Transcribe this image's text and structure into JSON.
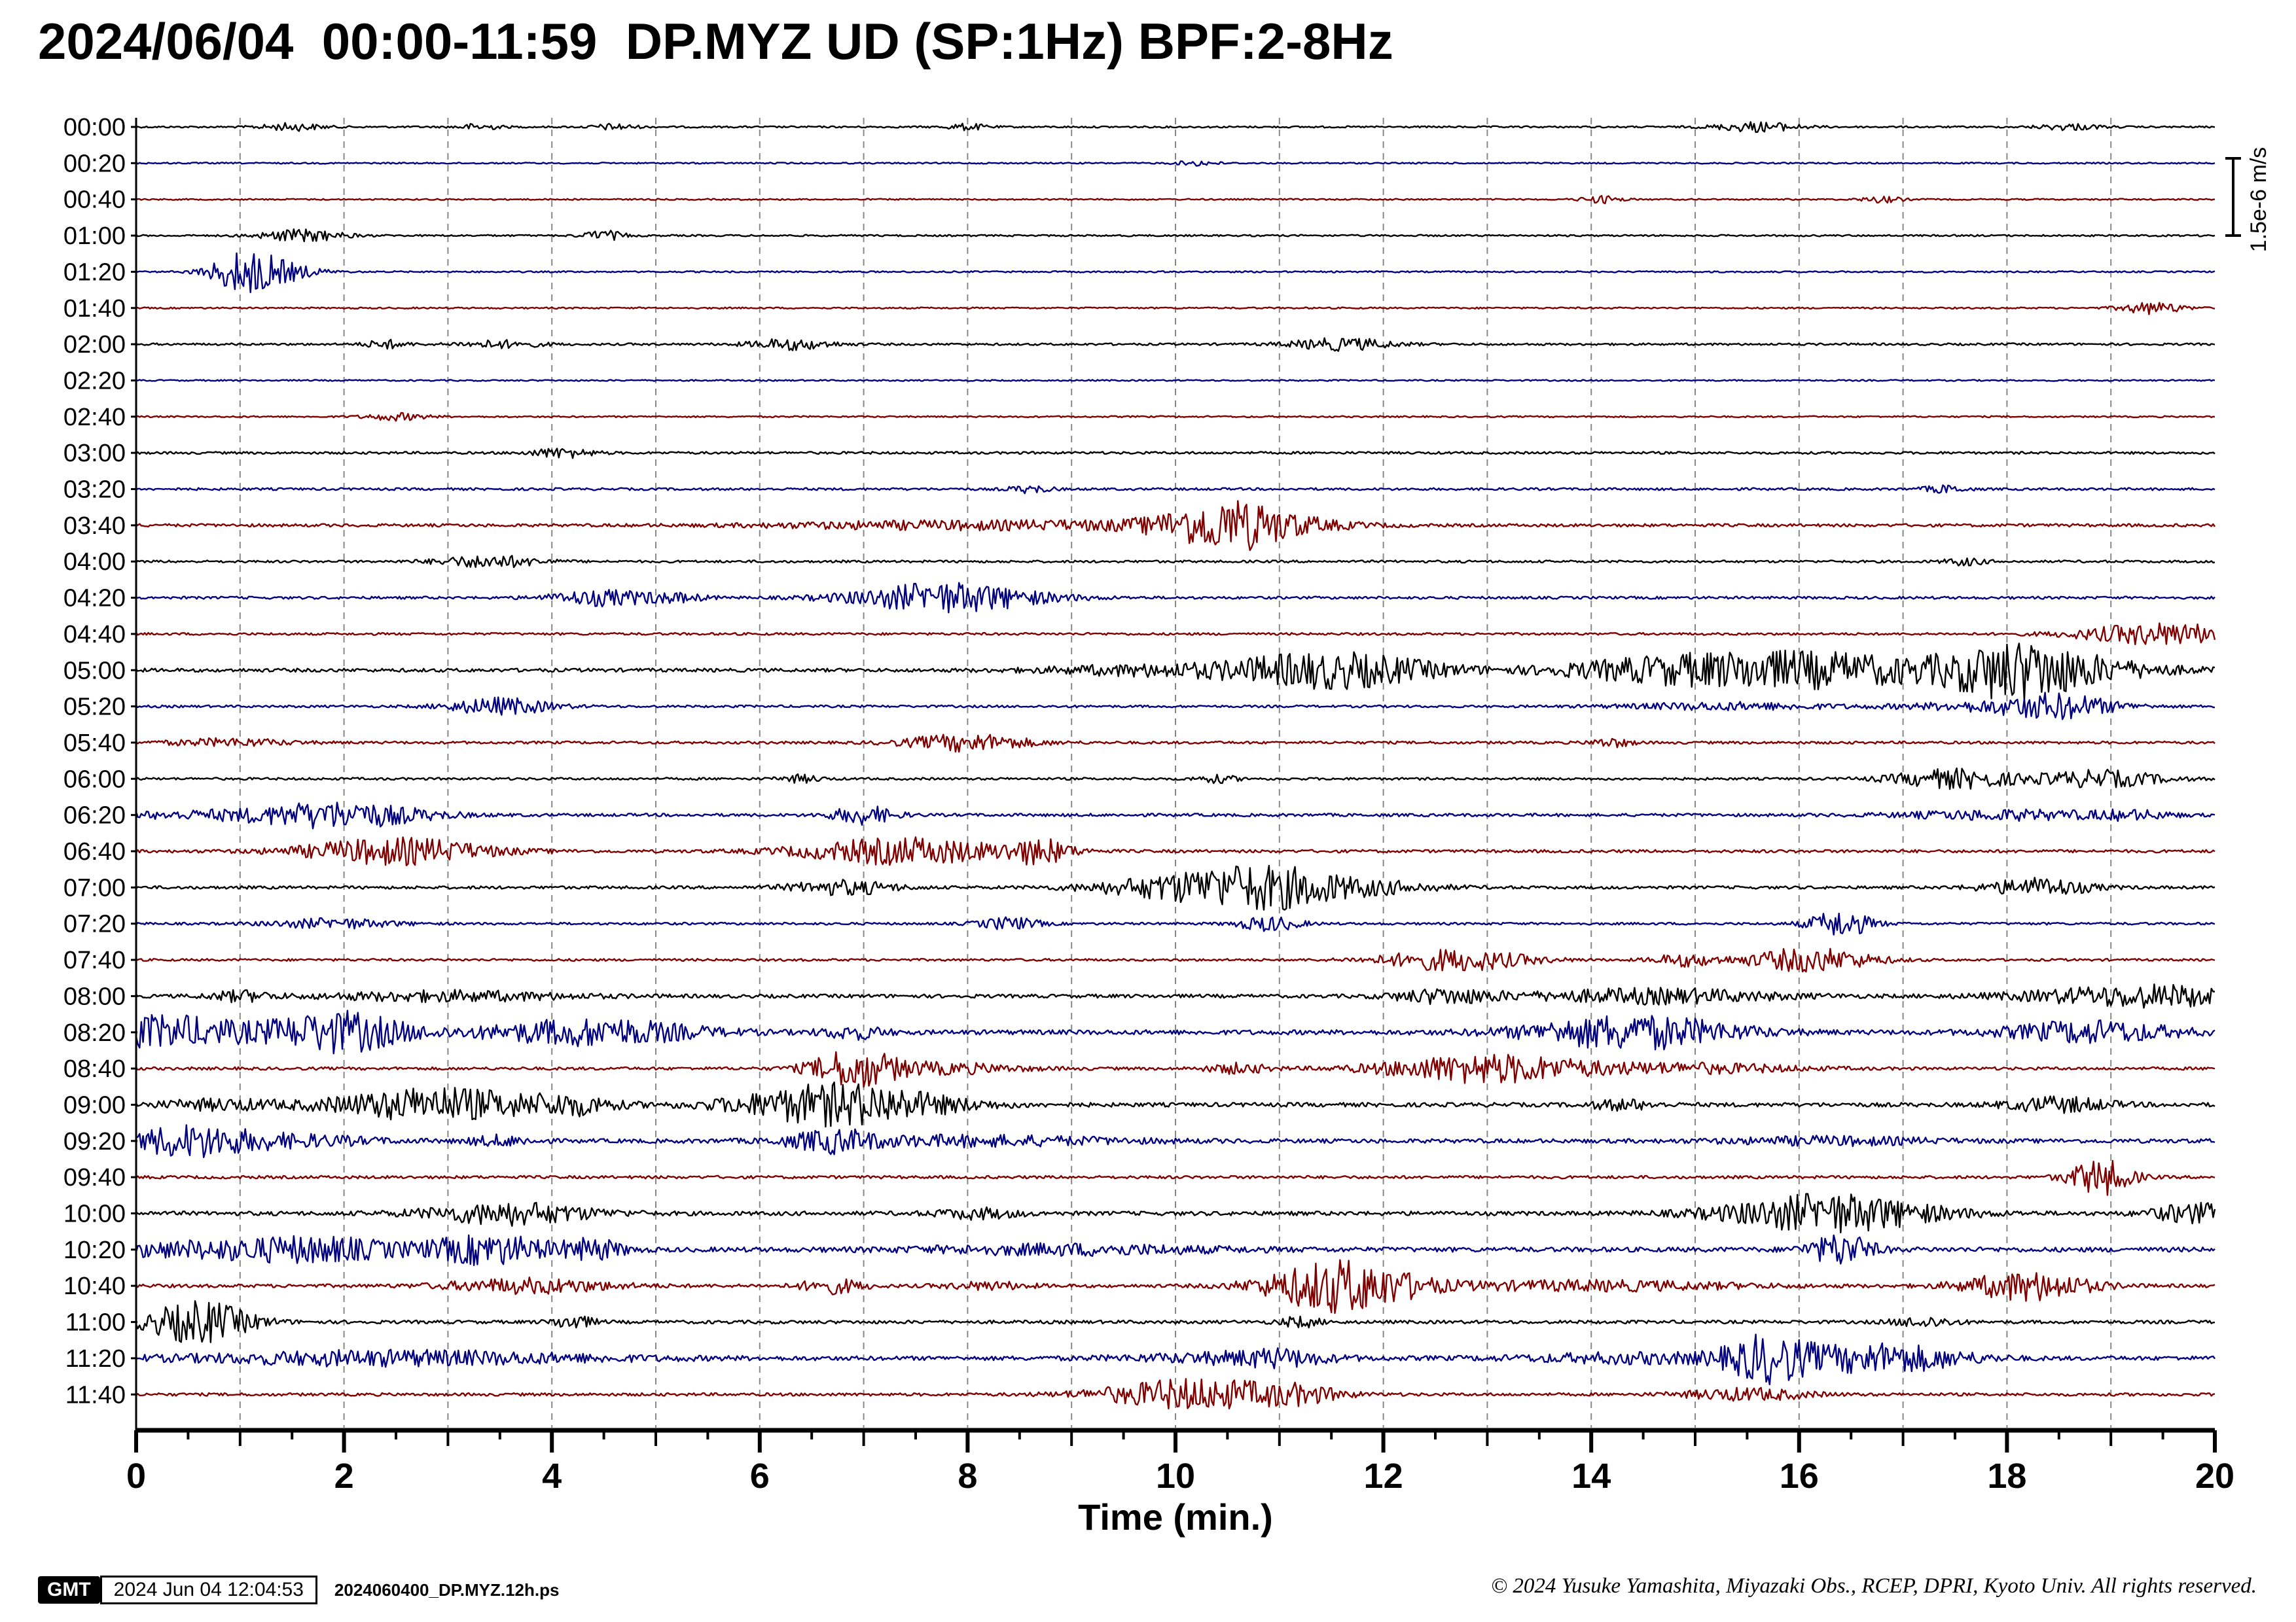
{
  "title": "2024/06/04  00:00-11:59  DP.MYZ UD (SP:1Hz) BPF:2-8Hz",
  "colors": {
    "black": "#000000",
    "blue": "#000080",
    "red": "#800000"
  },
  "footer": {
    "logo": "GMT",
    "timestamp": "2024 Jun 04 12:04:53",
    "filename": "2024060400_DP.MYZ.12h.ps",
    "copyright": "© 2024 Yusuke Yamashita, Miyazaki Obs., RCEP, DPRI, Kyoto Univ. All rights reserved."
  },
  "chart_data": {
    "type": "line",
    "title": "2024/06/04  00:00-11:59  DP.MYZ UD (SP:1Hz) BPF:2-8Hz",
    "xlabel": "Time (min.)",
    "xlim": [
      0,
      20
    ],
    "xticks": [
      0,
      2,
      4,
      6,
      8,
      10,
      12,
      14,
      16,
      18,
      20
    ],
    "scale_bar_label": "1.5e-6 m/s",
    "grid": "vertical dashed every 1 min",
    "series": [
      {
        "label": "00:00",
        "color": "black",
        "noise": 0.15,
        "events": [
          [
            1.5,
            0.6,
            0.3
          ],
          [
            3.3,
            0.5,
            0.2
          ],
          [
            4.6,
            0.5,
            0.2
          ],
          [
            8.0,
            0.5,
            0.2
          ],
          [
            15.6,
            0.8,
            0.4
          ],
          [
            18.6,
            0.5,
            0.3
          ]
        ]
      },
      {
        "label": "00:20",
        "color": "blue",
        "noise": 0.12,
        "events": [
          [
            10.2,
            0.4,
            0.2
          ]
        ]
      },
      {
        "label": "00:40",
        "color": "red",
        "noise": 0.12,
        "events": [
          [
            14.1,
            0.6,
            0.2
          ],
          [
            16.8,
            0.5,
            0.2
          ]
        ]
      },
      {
        "label": "01:00",
        "color": "black",
        "noise": 0.15,
        "events": [
          [
            1.6,
            1.0,
            0.4
          ],
          [
            4.5,
            0.8,
            0.2
          ]
        ]
      },
      {
        "label": "01:20",
        "color": "blue",
        "noise": 0.13,
        "events": [
          [
            1.0,
            2.5,
            0.3
          ],
          [
            1.3,
            1.8,
            0.4
          ]
        ]
      },
      {
        "label": "01:40",
        "color": "red",
        "noise": 0.13,
        "events": [
          [
            19.4,
            1.0,
            0.3
          ]
        ]
      },
      {
        "label": "02:00",
        "color": "black",
        "noise": 0.18,
        "events": [
          [
            2.4,
            0.7,
            0.2
          ],
          [
            3.5,
            0.6,
            0.4
          ],
          [
            6.3,
            0.9,
            0.4
          ],
          [
            11.6,
            1.0,
            0.5
          ]
        ]
      },
      {
        "label": "02:20",
        "color": "blue",
        "noise": 0.12,
        "events": []
      },
      {
        "label": "02:40",
        "color": "red",
        "noise": 0.13,
        "events": [
          [
            2.5,
            0.6,
            0.3
          ]
        ]
      },
      {
        "label": "03:00",
        "color": "black",
        "noise": 0.2,
        "events": [
          [
            4.1,
            0.8,
            0.3
          ]
        ]
      },
      {
        "label": "03:20",
        "color": "blue",
        "noise": 0.2,
        "events": [
          [
            8.6,
            0.6,
            0.2
          ],
          [
            17.4,
            0.6,
            0.2
          ]
        ]
      },
      {
        "label": "03:40",
        "color": "red",
        "noise": 0.25,
        "events": [
          [
            7.5,
            0.6,
            1.5
          ],
          [
            9.5,
            0.6,
            1.2
          ],
          [
            10.5,
            3.5,
            0.6
          ],
          [
            11.0,
            0.8,
            0.8
          ]
        ]
      },
      {
        "label": "04:00",
        "color": "black",
        "noise": 0.2,
        "events": [
          [
            3.4,
            1.0,
            0.5
          ],
          [
            17.6,
            0.6,
            0.2
          ]
        ]
      },
      {
        "label": "04:20",
        "color": "blue",
        "noise": 0.22,
        "events": [
          [
            4.5,
            1.3,
            0.5
          ],
          [
            5.2,
            0.6,
            0.3
          ],
          [
            7.8,
            2.5,
            0.9
          ]
        ]
      },
      {
        "label": "04:40",
        "color": "red",
        "noise": 0.2,
        "events": [
          [
            19.5,
            1.8,
            0.8
          ]
        ]
      },
      {
        "label": "05:00",
        "color": "black",
        "noise": 0.3,
        "events": [
          [
            9.7,
            0.8,
            1.0
          ],
          [
            11.5,
            3.0,
            1.0
          ],
          [
            14.5,
            1.2,
            1.0
          ],
          [
            16.0,
            3.0,
            1.4
          ],
          [
            18.1,
            4.5,
            0.7
          ],
          [
            19.0,
            1.0,
            0.8
          ]
        ]
      },
      {
        "label": "05:20",
        "color": "blue",
        "noise": 0.2,
        "events": [
          [
            3.5,
            1.4,
            0.5
          ],
          [
            15.3,
            0.6,
            1.0
          ],
          [
            18.0,
            0.8,
            1.0
          ],
          [
            18.5,
            1.6,
            0.5
          ]
        ]
      },
      {
        "label": "05:40",
        "color": "red",
        "noise": 0.22,
        "events": [
          [
            0.9,
            0.6,
            0.6
          ],
          [
            8.0,
            1.4,
            0.6
          ],
          [
            14.2,
            0.7,
            0.2
          ]
        ]
      },
      {
        "label": "06:00",
        "color": "black",
        "noise": 0.2,
        "events": [
          [
            6.4,
            0.6,
            0.2
          ],
          [
            10.4,
            0.6,
            0.2
          ],
          [
            17.5,
            1.6,
            0.6
          ],
          [
            18.9,
            1.4,
            0.6
          ]
        ]
      },
      {
        "label": "06:20",
        "color": "blue",
        "noise": 0.25,
        "events": [
          [
            0.8,
            0.6,
            1.2
          ],
          [
            2.0,
            2.0,
            0.8
          ],
          [
            7.0,
            1.5,
            0.3
          ],
          [
            18.0,
            0.8,
            1.0
          ],
          [
            19.2,
            0.6,
            0.4
          ]
        ]
      },
      {
        "label": "06:40",
        "color": "red",
        "noise": 0.25,
        "events": [
          [
            2.5,
            2.2,
            0.9
          ],
          [
            7.4,
            2.2,
            1.0
          ],
          [
            8.7,
            1.8,
            0.3
          ]
        ]
      },
      {
        "label": "07:00",
        "color": "black",
        "noise": 0.25,
        "events": [
          [
            6.8,
            1.2,
            0.5
          ],
          [
            10.2,
            2.2,
            0.9
          ],
          [
            11.0,
            2.6,
            0.7
          ],
          [
            12.0,
            0.8,
            0.6
          ],
          [
            18.3,
            1.5,
            0.5
          ]
        ]
      },
      {
        "label": "07:20",
        "color": "blue",
        "noise": 0.2,
        "events": [
          [
            1.9,
            0.8,
            0.6
          ],
          [
            8.4,
            1.0,
            0.3
          ],
          [
            10.9,
            1.2,
            0.3
          ],
          [
            16.4,
            2.2,
            0.3
          ]
        ]
      },
      {
        "label": "07:40",
        "color": "red",
        "noise": 0.2,
        "events": [
          [
            12.7,
            1.8,
            0.7
          ],
          [
            14.9,
            1.0,
            0.3
          ],
          [
            16.1,
            2.0,
            0.6
          ]
        ]
      },
      {
        "label": "08:00",
        "color": "black",
        "noise": 0.3,
        "events": [
          [
            1.0,
            0.8,
            0.3
          ],
          [
            3.0,
            0.8,
            1.2
          ],
          [
            12.6,
            1.2,
            0.5
          ],
          [
            14.6,
            1.2,
            1.2
          ],
          [
            19.4,
            1.8,
            1.2
          ]
        ]
      },
      {
        "label": "08:20",
        "color": "blue",
        "noise": 0.4,
        "events": [
          [
            0.2,
            1.8,
            0.6
          ],
          [
            1.0,
            1.2,
            1.4
          ],
          [
            2.0,
            2.6,
            0.6
          ],
          [
            4.4,
            2.2,
            1.0
          ],
          [
            6.9,
            1.0,
            0.3
          ],
          [
            14.4,
            2.8,
            1.0
          ],
          [
            18.8,
            1.8,
            0.8
          ]
        ]
      },
      {
        "label": "08:40",
        "color": "red",
        "noise": 0.25,
        "events": [
          [
            6.9,
            3.0,
            0.4
          ],
          [
            7.7,
            0.9,
            0.8
          ],
          [
            10.6,
            0.8,
            0.3
          ],
          [
            13.0,
            2.4,
            1.0
          ],
          [
            15.0,
            0.8,
            1.0
          ]
        ]
      },
      {
        "label": "09:00",
        "color": "black",
        "noise": 0.35,
        "events": [
          [
            0.8,
            0.8,
            0.6
          ],
          [
            2.9,
            2.8,
            1.0
          ],
          [
            4.2,
            1.3,
            0.4
          ],
          [
            6.8,
            3.5,
            1.0
          ],
          [
            14.3,
            0.8,
            0.3
          ],
          [
            18.5,
            1.2,
            0.5
          ]
        ]
      },
      {
        "label": "09:20",
        "color": "blue",
        "noise": 0.35,
        "events": [
          [
            0.5,
            2.5,
            0.6
          ],
          [
            1.5,
            0.9,
            0.8
          ],
          [
            3.5,
            0.8,
            0.3
          ],
          [
            6.7,
            1.6,
            0.4
          ],
          [
            8.0,
            0.8,
            1.5
          ],
          [
            16.3,
            0.6,
            1.0
          ]
        ]
      },
      {
        "label": "09:40",
        "color": "red",
        "noise": 0.25,
        "events": [
          [
            18.9,
            3.0,
            0.3
          ]
        ]
      },
      {
        "label": "10:00",
        "color": "black",
        "noise": 0.35,
        "events": [
          [
            3.6,
            1.8,
            0.8
          ],
          [
            8.1,
            0.8,
            0.4
          ],
          [
            16.3,
            3.2,
            1.0
          ],
          [
            19.8,
            1.6,
            0.4
          ]
        ]
      },
      {
        "label": "10:20",
        "color": "blue",
        "noise": 0.4,
        "events": [
          [
            0.6,
            1.2,
            1.2
          ],
          [
            1.8,
            1.6,
            0.8
          ],
          [
            3.4,
            2.4,
            0.6
          ],
          [
            4.4,
            1.6,
            0.3
          ],
          [
            9.0,
            0.8,
            1.4
          ],
          [
            16.4,
            2.6,
            0.3
          ]
        ]
      },
      {
        "label": "10:40",
        "color": "red",
        "noise": 0.28,
        "events": [
          [
            3.8,
            1.2,
            0.8
          ],
          [
            6.7,
            1.2,
            0.3
          ],
          [
            8.2,
            0.6,
            0.4
          ],
          [
            11.6,
            4.5,
            0.7
          ],
          [
            14.0,
            0.8,
            1.5
          ],
          [
            18.2,
            2.4,
            0.6
          ]
        ]
      },
      {
        "label": "11:00",
        "color": "black",
        "noise": 0.28,
        "events": [
          [
            0.6,
            3.5,
            0.5
          ],
          [
            4.2,
            1.1,
            0.2
          ],
          [
            11.2,
            0.8,
            0.2
          ],
          [
            17.2,
            0.8,
            0.3
          ]
        ]
      },
      {
        "label": "11:20",
        "color": "blue",
        "noise": 0.35,
        "events": [
          [
            2.5,
            1.2,
            2.0
          ],
          [
            10.5,
            0.8,
            1.0
          ],
          [
            11.0,
            0.9,
            0.4
          ],
          [
            14.5,
            0.8,
            1.2
          ],
          [
            15.7,
            3.5,
            0.4
          ],
          [
            16.8,
            2.4,
            0.8
          ]
        ]
      },
      {
        "label": "11:40",
        "color": "red",
        "noise": 0.25,
        "events": [
          [
            10.2,
            2.6,
            0.9
          ],
          [
            11.2,
            1.0,
            0.4
          ],
          [
            15.5,
            1.0,
            0.6
          ]
        ]
      }
    ]
  }
}
